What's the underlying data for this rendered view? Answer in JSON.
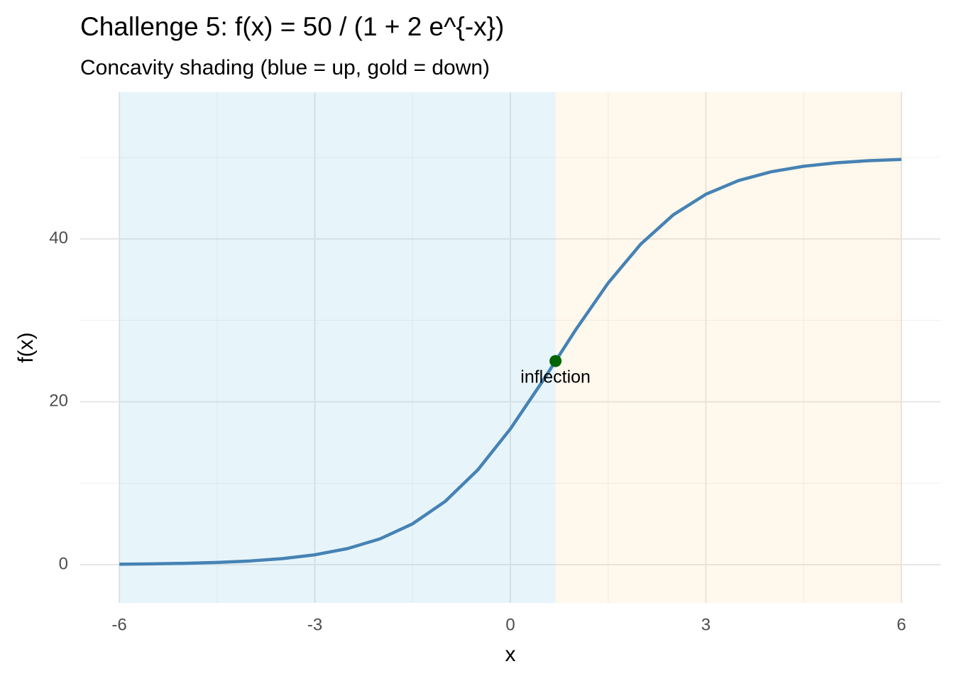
{
  "chart_data": {
    "type": "line",
    "title": "Challenge 5:  f(x) = 50 / (1 + 2 e^{-x})",
    "subtitle": "Concavity shading (blue = up, gold = down)",
    "x_label": "x",
    "y_label": "f(x)",
    "x": [
      -6,
      -5.5,
      -5,
      -4.5,
      -4,
      -3.5,
      -3,
      -2.5,
      -2,
      -1.5,
      -1,
      -0.5,
      0,
      0.5,
      1,
      1.5,
      2,
      2.5,
      3,
      3.5,
      4,
      4.5,
      5,
      5.5,
      6
    ],
    "series": [
      {
        "color": "#4682b4",
        "values": [
          0.062,
          0.102,
          0.168,
          0.276,
          0.454,
          0.744,
          1.214,
          1.971,
          3.169,
          5.018,
          7.768,
          11.635,
          16.667,
          22.593,
          28.806,
          34.572,
          39.349,
          42.949,
          45.473,
          47.152,
          48.233,
          48.913,
          49.335,
          49.595,
          49.753
        ]
      }
    ],
    "shading": [
      {
        "from": -6,
        "to": 0.693,
        "color": "#87ceeb",
        "opacity": 0.2
      },
      {
        "from": 0.693,
        "to": 6,
        "color": "#ffd27f",
        "opacity": 0.15
      }
    ],
    "annotations": [
      {
        "x": 0.693,
        "y": 25,
        "label": "inflection",
        "color": "#006400"
      }
    ],
    "xlim": [
      -6.6,
      6.6
    ],
    "ylim": [
      -4.7,
      58
    ],
    "xticks": [
      -6,
      -3,
      0,
      3,
      6
    ],
    "yticks": [
      0,
      20,
      40
    ],
    "xticks_minor": [
      -4.5,
      -1.5,
      1.5,
      4.5
    ],
    "yticks_minor": [
      10,
      30,
      50
    ],
    "grid": true
  }
}
